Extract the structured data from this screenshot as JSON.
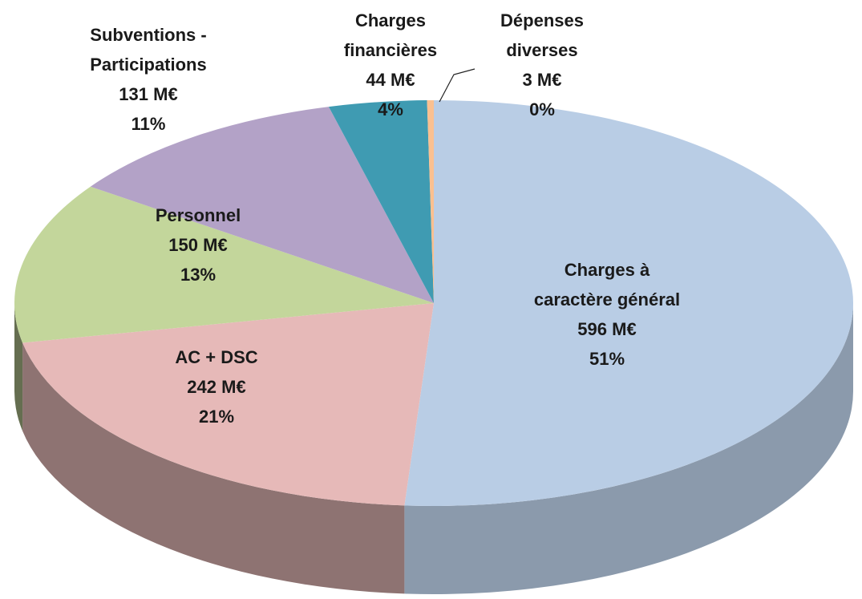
{
  "chart_data": {
    "type": "pie3d",
    "categories": [
      "Charges à caractère général",
      "AC + DSC",
      "Personnel",
      "Subventions - Participations",
      "Charges financières",
      "Dépenses diverses"
    ],
    "values": [
      596,
      242,
      150,
      131,
      44,
      3
    ],
    "value_labels": [
      "596 M€",
      "242 M€",
      "150 M€",
      "131 M€",
      "44 M€",
      "3 M€"
    ],
    "percentage_labels": [
      "51%",
      "21%",
      "13%",
      "11%",
      "4%",
      "0%"
    ],
    "colors": [
      "#b9cde5",
      "#e6b9b8",
      "#c3d69b",
      "#b3a2c7",
      "#3f9bb2",
      "#fac090"
    ]
  }
}
